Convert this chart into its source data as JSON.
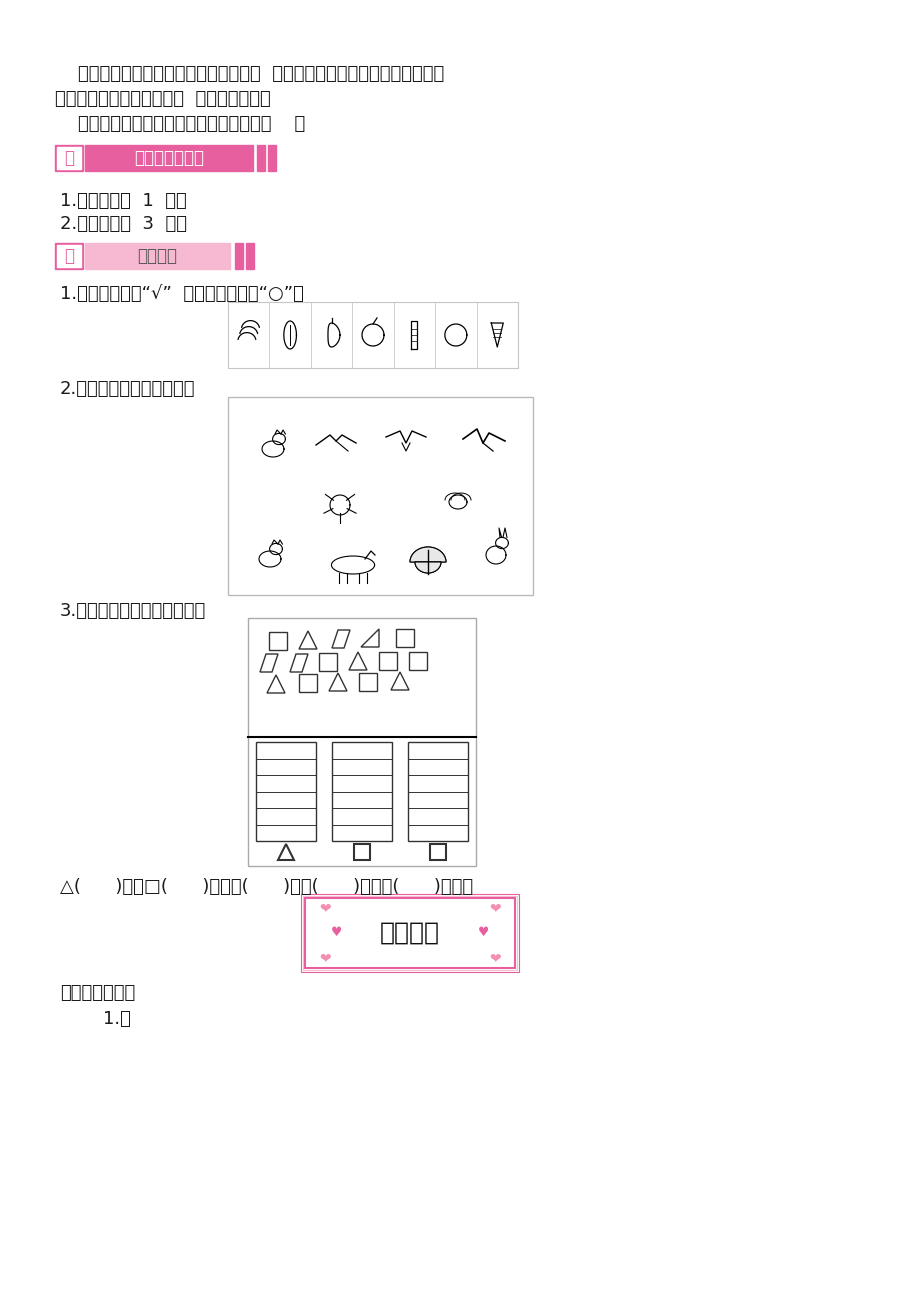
{
  "bg_color": "#ffffff",
  "text_color": "#1a1a1a",
  "pink_color": "#e85fa0",
  "light_pink": "#f7b8d1",
  "para1_line1": "    学生每次分完，都要说说是按什么分的  ，为什么不同的同学分的结果是不一",
  "para1_line2": "样的，只要学生说得有道理  ，就应该肯定。",
  "para1_line3": "    （如有的同学按颜色分，有的按个数分等    ）",
  "section3_label": "三",
  "section3_title": "课堂作业新设计",
  "item1": "1.练习七的第  1  题。",
  "item2": "2.练习七的第  3  题。",
  "section4_label": "四",
  "section4_title": "思维训练",
  "q1": "1.在水果下面画“√”  ，在蔬菜下面画“○”。",
  "q2": "2.把会飞的动物涂上颜色。",
  "q3": "3.数一数，涂一涂，填一填。",
  "q3_line": "△(      )个，□(      )个，？(      )个。(      )最多，(      )最少。",
  "answer_section": "课堂作业新设计",
  "answer1": "    1.略"
}
